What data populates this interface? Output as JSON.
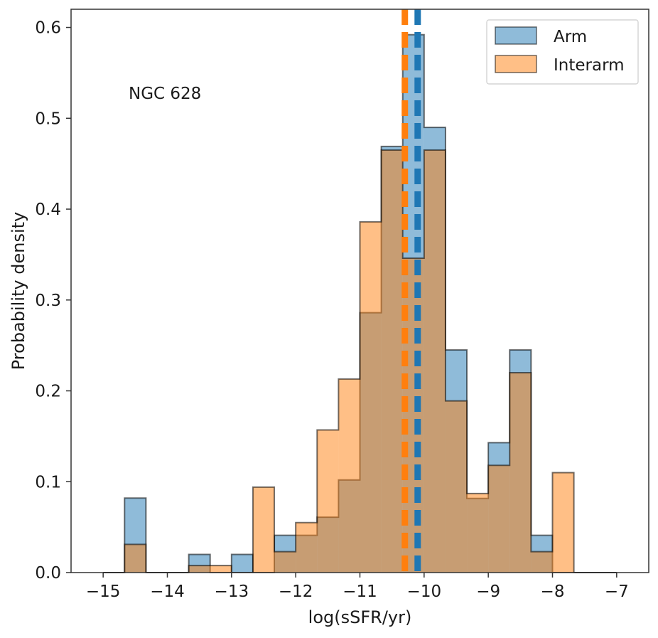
{
  "chart_data": {
    "type": "histogram",
    "annotation": "NGC 628",
    "xlabel": "log(sSFR/yr)",
    "ylabel": "Probability density",
    "xlim": [
      -15.5,
      -6.5
    ],
    "ylim": [
      0,
      0.62
    ],
    "xticks": [
      -15,
      -14,
      -13,
      -12,
      -11,
      -10,
      -9,
      -8,
      -7
    ],
    "xtick_labels": [
      "−15",
      "−14",
      "−13",
      "−12",
      "−11",
      "−10",
      "−9",
      "−8",
      "−7"
    ],
    "yticks": [
      0.0,
      0.1,
      0.2,
      0.3,
      0.4,
      0.5,
      0.6
    ],
    "ytick_labels": [
      "0.0",
      "0.1",
      "0.2",
      "0.3",
      "0.4",
      "0.5",
      "0.6"
    ],
    "grid": false,
    "legend_position": "top-right",
    "bin_edges": [
      -15.0,
      -14.6667,
      -14.3333,
      -14.0,
      -13.6667,
      -13.3333,
      -13.0,
      -12.6667,
      -12.3333,
      -12.0,
      -11.6667,
      -11.3333,
      -11.0,
      -10.6667,
      -10.3333,
      -10.0,
      -9.6667,
      -9.3333,
      -9.0,
      -8.6667,
      -8.3333,
      -8.0,
      -7.6667,
      -7.3333,
      -7.0
    ],
    "series": [
      {
        "name": "Arm",
        "color": "#1f77b4",
        "values": [
          0.0,
          0.082,
          0.0,
          0.0,
          0.02,
          0.0,
          0.02,
          0.0,
          0.041,
          0.041,
          0.061,
          0.102,
          0.286,
          0.469,
          0.592,
          0.49,
          0.245,
          0.0816,
          0.143,
          0.245,
          0.041,
          0.0,
          0.0,
          0.0
        ],
        "median_line": -10.1
      },
      {
        "name": "Interarm",
        "color": "#ff7f0e",
        "values": [
          0.0,
          0.031,
          0.0,
          0.0,
          0.0077,
          0.0077,
          0.0,
          0.094,
          0.023,
          0.055,
          0.157,
          0.213,
          0.386,
          0.465,
          0.346,
          0.465,
          0.189,
          0.087,
          0.118,
          0.22,
          0.023,
          0.11,
          0.0,
          0.0
        ],
        "median_line": -10.3
      }
    ]
  }
}
